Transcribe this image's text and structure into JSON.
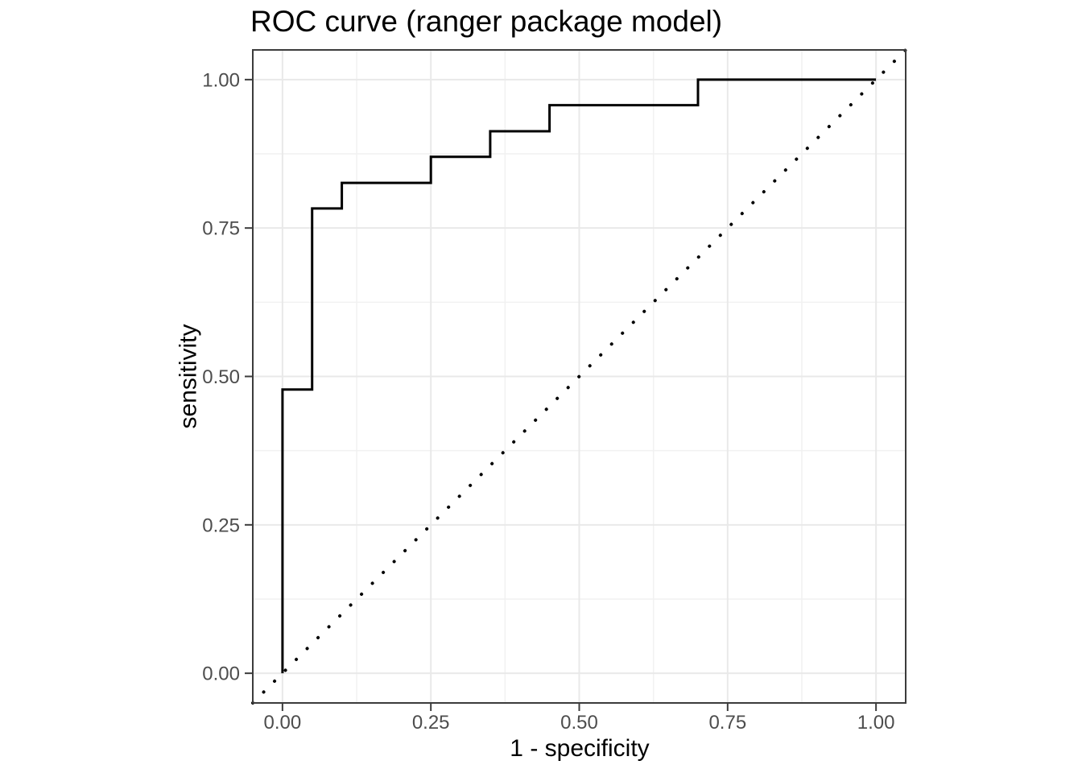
{
  "chart_data": {
    "type": "line",
    "title": "ROC curve (ranger package model)",
    "xlabel": "1 - specificity",
    "ylabel": "sensitivity",
    "xlim": [
      -0.05,
      1.05
    ],
    "ylim": [
      -0.05,
      1.05
    ],
    "grid": "major+minor",
    "legend": "none",
    "x_ticks": {
      "values": [
        0,
        0.25,
        0.5,
        0.75,
        1
      ],
      "labels": [
        "0.00",
        "0.25",
        "0.50",
        "0.75",
        "1.00"
      ]
    },
    "y_ticks": {
      "values": [
        0,
        0.25,
        0.5,
        0.75,
        1
      ],
      "labels": [
        "0.00",
        "0.25",
        "0.50",
        "0.75",
        "1.00"
      ]
    },
    "x_minor_ticks": [
      0.125,
      0.375,
      0.625,
      0.875
    ],
    "y_minor_ticks": [
      0.125,
      0.375,
      0.625,
      0.875
    ],
    "series": [
      {
        "name": "ROC step curve",
        "type": "step",
        "line_style": "solid",
        "color": "#000000",
        "points": [
          [
            0,
            0
          ],
          [
            0,
            0.478
          ],
          [
            0.05,
            0.478
          ],
          [
            0.05,
            0.783
          ],
          [
            0.1,
            0.783
          ],
          [
            0.1,
            0.826
          ],
          [
            0.25,
            0.826
          ],
          [
            0.25,
            0.87
          ],
          [
            0.35,
            0.87
          ],
          [
            0.35,
            0.913
          ],
          [
            0.45,
            0.913
          ],
          [
            0.45,
            0.957
          ],
          [
            0.7,
            0.957
          ],
          [
            0.7,
            1.0
          ],
          [
            1.0,
            1.0
          ]
        ]
      },
      {
        "name": "chance diagonal (y = x)",
        "type": "line",
        "line_style": "dotted",
        "color": "#000000",
        "points": [
          [
            -0.05,
            -0.05
          ],
          [
            1.05,
            1.05
          ]
        ]
      }
    ],
    "colors": {
      "figure_background": "#ffffff",
      "panel_background": "#ffffff",
      "panel_border": "#3c3c3c",
      "grid_major": "#e9e9e9",
      "grid_minor": "#f1f1f1",
      "tick_mark": "#3c3c3c",
      "tick_label": "#4d4d4d",
      "axis_title": "#000000",
      "title": "#000000",
      "curve": "#000000"
    }
  }
}
